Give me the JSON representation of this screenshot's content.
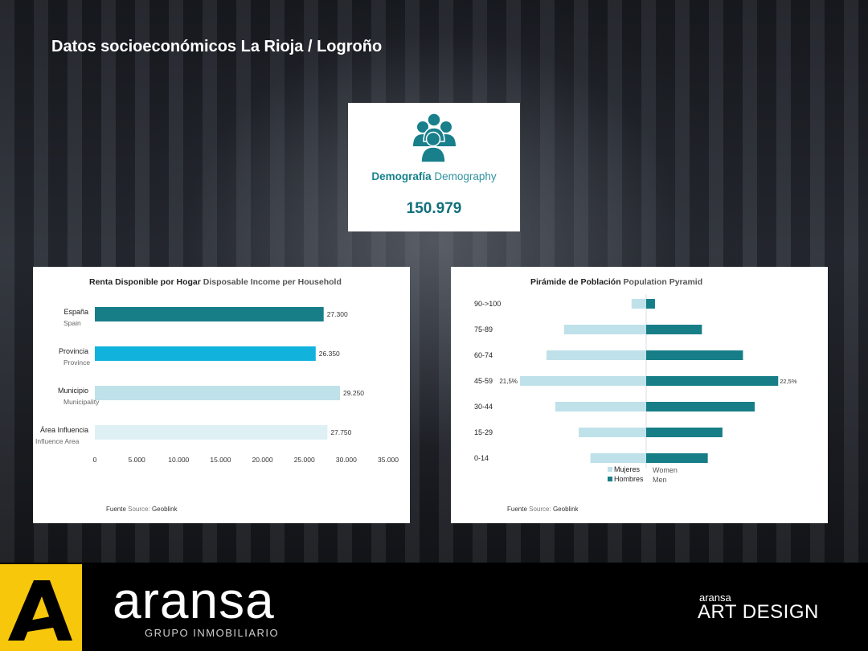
{
  "page": {
    "title": "Datos socioeconómicos La Rioja / Logroño"
  },
  "demography": {
    "label_es": "Demografía",
    "label_en": "Demography",
    "value": "150.979",
    "icon": "people-group-icon"
  },
  "chart_data": [
    {
      "type": "bar",
      "orientation": "horizontal",
      "title_es": "Renta Disponible por Hogar",
      "title_en": "Disposable Income per Household",
      "categories": [
        {
          "es": "España",
          "en": "Spain"
        },
        {
          "es": "Provincia",
          "en": "Province"
        },
        {
          "es": "Municipio",
          "en": "Municipality"
        },
        {
          "es": "Área Influencia",
          "en": "Influence Area"
        }
      ],
      "values": [
        27300,
        26350,
        29250,
        27750
      ],
      "value_labels": [
        "27.300",
        "26.350",
        "29.250",
        "27.750"
      ],
      "colors": [
        "#177e88",
        "#11b3dd",
        "#bfe1ea",
        "#dff0f4"
      ],
      "xlim": [
        0,
        35000
      ],
      "xticks": [
        0,
        5000,
        10000,
        15000,
        20000,
        25000,
        30000,
        35000
      ],
      "xtick_labels": [
        "0",
        "5.000",
        "10.000",
        "15.000",
        "20.000",
        "25.000",
        "30.000",
        "35.000"
      ],
      "grid": false,
      "source_es": "Fuente",
      "source_en": "Source:",
      "source_name": "Geoblink"
    },
    {
      "type": "bar",
      "subtype": "population-pyramid",
      "title_es": "Pirámide de Población",
      "title_en": "Population Pyramid",
      "categories": [
        "90->100",
        "75-89",
        "60-74",
        "45-59",
        "30-44",
        "15-29",
        "0-14"
      ],
      "series": [
        {
          "name": "Mujeres",
          "name_en": "Women",
          "color": "#bfe1ea",
          "values": [
            2.5,
            14.0,
            17.0,
            21.5,
            15.5,
            11.5,
            9.5
          ]
        },
        {
          "name": "Hombres",
          "name_en": "Men",
          "color": "#177e88",
          "values": [
            1.5,
            9.5,
            16.5,
            22.5,
            18.5,
            13.0,
            10.5
          ]
        }
      ],
      "annotations": [
        "21,5%",
        "22,5%"
      ],
      "legend": "bottom-center",
      "source_es": "Fuente",
      "source_en": "Source:",
      "source_name": "Geoblink"
    }
  ],
  "footer": {
    "brand": "aransa",
    "brand_sub": "GRUPO INMOBILIARIO",
    "art_small": "aransa",
    "art_big": "ART DESIGN",
    "brand_color": "#f7c70c"
  }
}
